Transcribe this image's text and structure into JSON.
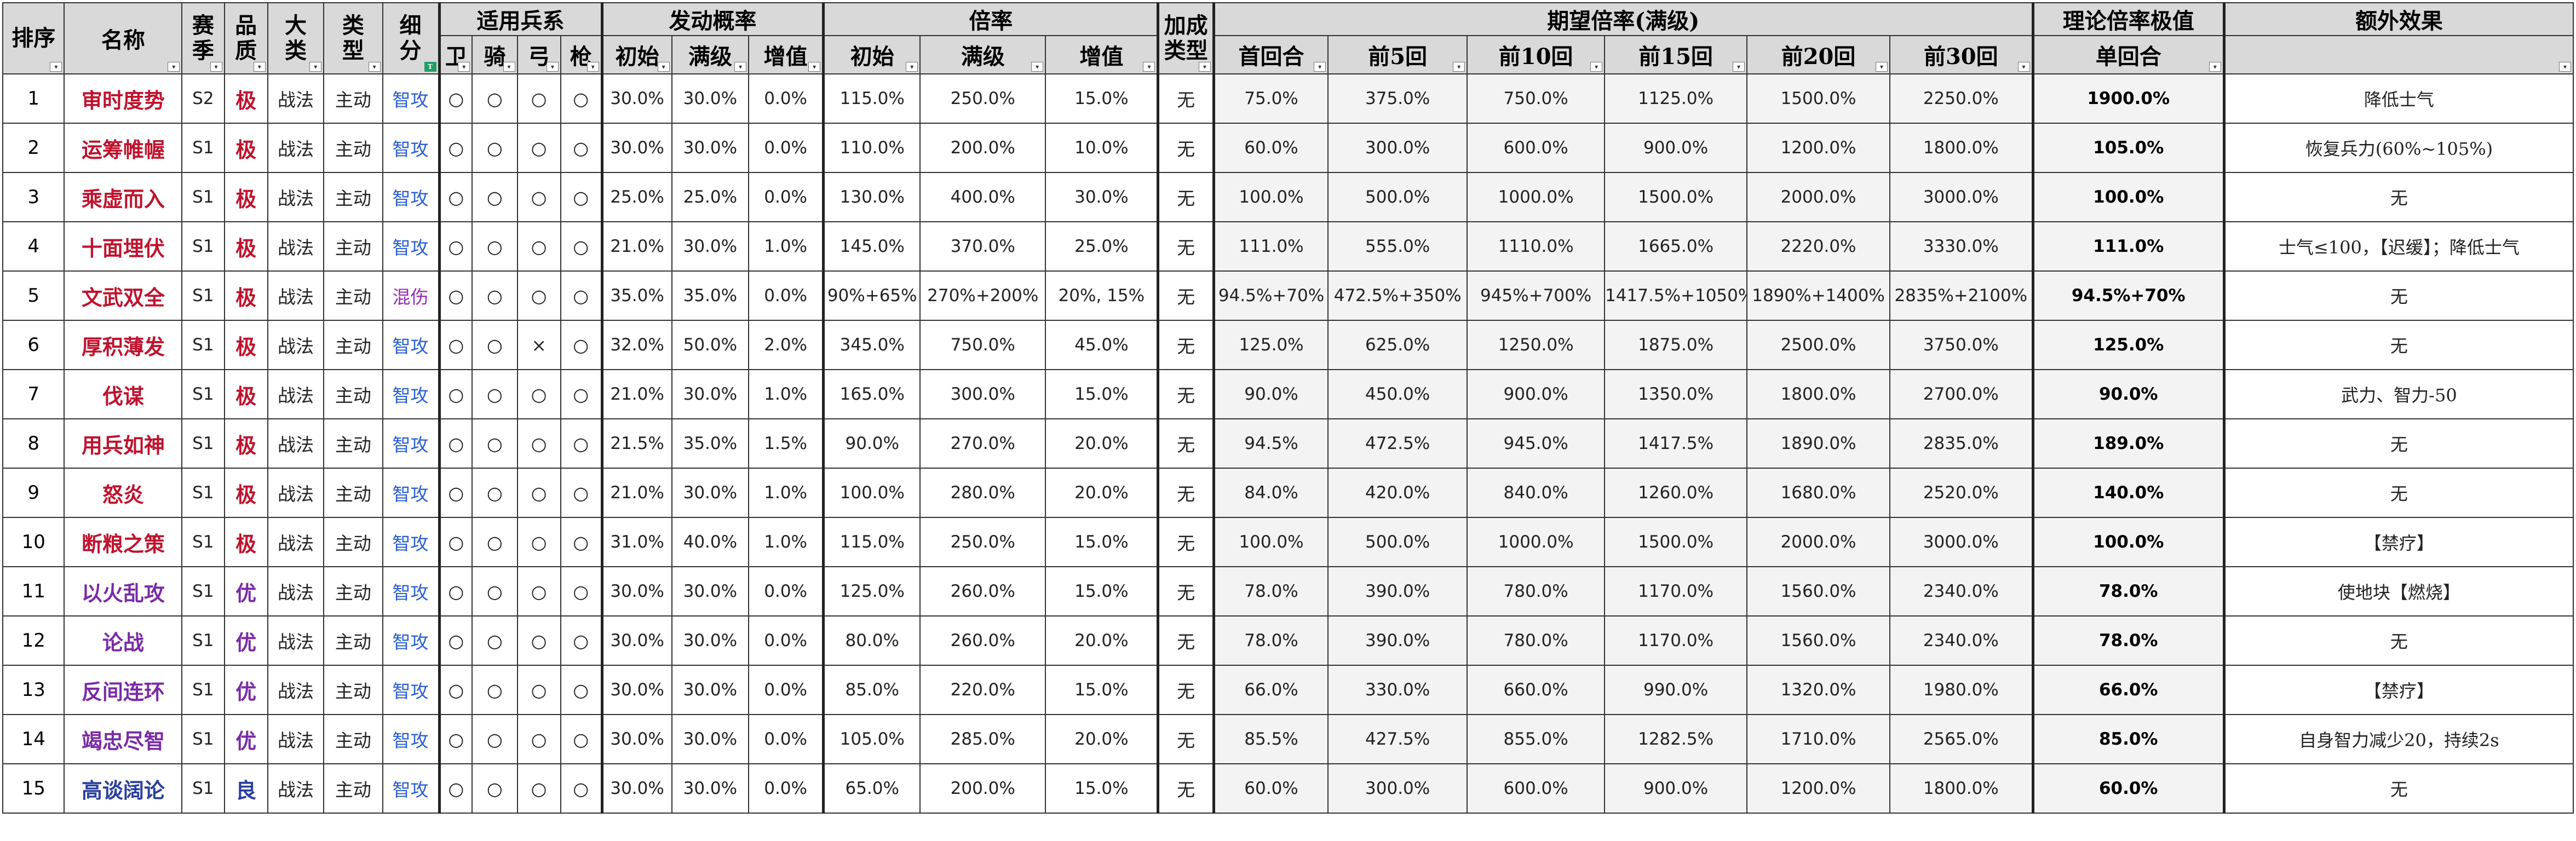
{
  "header": {
    "rank": "排序",
    "name": "名称",
    "season": "赛季",
    "quality": "品质",
    "major": "大类",
    "type": "类型",
    "subtype": "细分",
    "troops_group": "适用兵系",
    "troops": [
      "卫",
      "骑",
      "弓",
      "枪"
    ],
    "prob_group": "发动概率",
    "prob": [
      "初始",
      "满级",
      "增值"
    ],
    "rate_group": "倍率",
    "rate": [
      "初始",
      "满级",
      "增值"
    ],
    "bonus_type": "加成类型",
    "expect_group": "期望倍率(满级)",
    "expect": [
      "首回合",
      "前5回",
      "前10回",
      "前15回",
      "前20回",
      "前30回"
    ],
    "theo_group": "理论倍率极值",
    "theo": "单回合",
    "extra": "额外效果"
  },
  "colors": {
    "极": "#c0122d",
    "优": "#7a2aa6",
    "良": "#2a3f9e",
    "智攻": "#2a5fd4",
    "混伤": "#9a2ab5"
  },
  "rows": [
    {
      "rank": "1",
      "name": "审时度势",
      "season": "S2",
      "quality": "极",
      "major": "战法",
      "type": "主动",
      "sub": "智攻",
      "troops": [
        "○",
        "○",
        "○",
        "○"
      ],
      "prob": [
        "30.0%",
        "30.0%",
        "0.0%"
      ],
      "rate": [
        "115.0%",
        "250.0%",
        "15.0%"
      ],
      "bonus": "无",
      "expect": [
        "75.0%",
        "375.0%",
        "750.0%",
        "1125.0%",
        "1500.0%",
        "2250.0%"
      ],
      "theo": "1900.0%",
      "extra": "降低士气"
    },
    {
      "rank": "2",
      "name": "运筹帷幄",
      "season": "S1",
      "quality": "极",
      "major": "战法",
      "type": "主动",
      "sub": "智攻",
      "troops": [
        "○",
        "○",
        "○",
        "○"
      ],
      "prob": [
        "30.0%",
        "30.0%",
        "0.0%"
      ],
      "rate": [
        "110.0%",
        "200.0%",
        "10.0%"
      ],
      "bonus": "无",
      "expect": [
        "60.0%",
        "300.0%",
        "600.0%",
        "900.0%",
        "1200.0%",
        "1800.0%"
      ],
      "theo": "105.0%",
      "extra": "恢复兵力(60%~105%)"
    },
    {
      "rank": "3",
      "name": "乘虚而入",
      "season": "S1",
      "quality": "极",
      "major": "战法",
      "type": "主动",
      "sub": "智攻",
      "troops": [
        "○",
        "○",
        "○",
        "○"
      ],
      "prob": [
        "25.0%",
        "25.0%",
        "0.0%"
      ],
      "rate": [
        "130.0%",
        "400.0%",
        "30.0%"
      ],
      "bonus": "无",
      "expect": [
        "100.0%",
        "500.0%",
        "1000.0%",
        "1500.0%",
        "2000.0%",
        "3000.0%"
      ],
      "theo": "100.0%",
      "extra": "无"
    },
    {
      "rank": "4",
      "name": "十面埋伏",
      "season": "S1",
      "quality": "极",
      "major": "战法",
      "type": "主动",
      "sub": "智攻",
      "troops": [
        "○",
        "○",
        "○",
        "○"
      ],
      "prob": [
        "21.0%",
        "30.0%",
        "1.0%"
      ],
      "rate": [
        "145.0%",
        "370.0%",
        "25.0%"
      ],
      "bonus": "无",
      "expect": [
        "111.0%",
        "555.0%",
        "1110.0%",
        "1665.0%",
        "2220.0%",
        "3330.0%"
      ],
      "theo": "111.0%",
      "extra": "士气≤100，【迟缓】；降低士气"
    },
    {
      "rank": "5",
      "name": "文武双全",
      "season": "S1",
      "quality": "极",
      "major": "战法",
      "type": "主动",
      "sub": "混伤",
      "troops": [
        "○",
        "○",
        "○",
        "○"
      ],
      "prob": [
        "35.0%",
        "35.0%",
        "0.0%"
      ],
      "rate": [
        "90%+65%",
        "270%+200%",
        "20%, 15%"
      ],
      "bonus": "无",
      "expect": [
        "94.5%+70%",
        "472.5%+350%",
        "945%+700%",
        "1417.5%+1050%",
        "1890%+1400%",
        "2835%+2100%"
      ],
      "theo": "94.5%+70%",
      "extra": "无"
    },
    {
      "rank": "6",
      "name": "厚积薄发",
      "season": "S1",
      "quality": "极",
      "major": "战法",
      "type": "主动",
      "sub": "智攻",
      "troops": [
        "○",
        "○",
        "×",
        "○"
      ],
      "prob": [
        "32.0%",
        "50.0%",
        "2.0%"
      ],
      "rate": [
        "345.0%",
        "750.0%",
        "45.0%"
      ],
      "bonus": "无",
      "expect": [
        "125.0%",
        "625.0%",
        "1250.0%",
        "1875.0%",
        "2500.0%",
        "3750.0%"
      ],
      "theo": "125.0%",
      "extra": "无"
    },
    {
      "rank": "7",
      "name": "伐谋",
      "season": "S1",
      "quality": "极",
      "major": "战法",
      "type": "主动",
      "sub": "智攻",
      "troops": [
        "○",
        "○",
        "○",
        "○"
      ],
      "prob": [
        "21.0%",
        "30.0%",
        "1.0%"
      ],
      "rate": [
        "165.0%",
        "300.0%",
        "15.0%"
      ],
      "bonus": "无",
      "expect": [
        "90.0%",
        "450.0%",
        "900.0%",
        "1350.0%",
        "1800.0%",
        "2700.0%"
      ],
      "theo": "90.0%",
      "extra": "武力、智力-50"
    },
    {
      "rank": "8",
      "name": "用兵如神",
      "season": "S1",
      "quality": "极",
      "major": "战法",
      "type": "主动",
      "sub": "智攻",
      "troops": [
        "○",
        "○",
        "○",
        "○"
      ],
      "prob": [
        "21.5%",
        "35.0%",
        "1.5%"
      ],
      "rate": [
        "90.0%",
        "270.0%",
        "20.0%"
      ],
      "bonus": "无",
      "expect": [
        "94.5%",
        "472.5%",
        "945.0%",
        "1417.5%",
        "1890.0%",
        "2835.0%"
      ],
      "theo": "189.0%",
      "extra": "无"
    },
    {
      "rank": "9",
      "name": "怒炎",
      "season": "S1",
      "quality": "极",
      "major": "战法",
      "type": "主动",
      "sub": "智攻",
      "troops": [
        "○",
        "○",
        "○",
        "○"
      ],
      "prob": [
        "21.0%",
        "30.0%",
        "1.0%"
      ],
      "rate": [
        "100.0%",
        "280.0%",
        "20.0%"
      ],
      "bonus": "无",
      "expect": [
        "84.0%",
        "420.0%",
        "840.0%",
        "1260.0%",
        "1680.0%",
        "2520.0%"
      ],
      "theo": "140.0%",
      "extra": "无"
    },
    {
      "rank": "10",
      "name": "断粮之策",
      "season": "S1",
      "quality": "极",
      "major": "战法",
      "type": "主动",
      "sub": "智攻",
      "troops": [
        "○",
        "○",
        "○",
        "○"
      ],
      "prob": [
        "31.0%",
        "40.0%",
        "1.0%"
      ],
      "rate": [
        "115.0%",
        "250.0%",
        "15.0%"
      ],
      "bonus": "无",
      "expect": [
        "100.0%",
        "500.0%",
        "1000.0%",
        "1500.0%",
        "2000.0%",
        "3000.0%"
      ],
      "theo": "100.0%",
      "extra": "【禁疗】"
    },
    {
      "rank": "11",
      "name": "以火乱攻",
      "season": "S1",
      "quality": "优",
      "major": "战法",
      "type": "主动",
      "sub": "智攻",
      "troops": [
        "○",
        "○",
        "○",
        "○"
      ],
      "prob": [
        "30.0%",
        "30.0%",
        "0.0%"
      ],
      "rate": [
        "125.0%",
        "260.0%",
        "15.0%"
      ],
      "bonus": "无",
      "expect": [
        "78.0%",
        "390.0%",
        "780.0%",
        "1170.0%",
        "1560.0%",
        "2340.0%"
      ],
      "theo": "78.0%",
      "extra": "使地块【燃烧】"
    },
    {
      "rank": "12",
      "name": "论战",
      "season": "S1",
      "quality": "优",
      "major": "战法",
      "type": "主动",
      "sub": "智攻",
      "troops": [
        "○",
        "○",
        "○",
        "○"
      ],
      "prob": [
        "30.0%",
        "30.0%",
        "0.0%"
      ],
      "rate": [
        "80.0%",
        "260.0%",
        "20.0%"
      ],
      "bonus": "无",
      "expect": [
        "78.0%",
        "390.0%",
        "780.0%",
        "1170.0%",
        "1560.0%",
        "2340.0%"
      ],
      "theo": "78.0%",
      "extra": "无"
    },
    {
      "rank": "13",
      "name": "反间连环",
      "season": "S1",
      "quality": "优",
      "major": "战法",
      "type": "主动",
      "sub": "智攻",
      "troops": [
        "○",
        "○",
        "○",
        "○"
      ],
      "prob": [
        "30.0%",
        "30.0%",
        "0.0%"
      ],
      "rate": [
        "85.0%",
        "220.0%",
        "15.0%"
      ],
      "bonus": "无",
      "expect": [
        "66.0%",
        "330.0%",
        "660.0%",
        "990.0%",
        "1320.0%",
        "1980.0%"
      ],
      "theo": "66.0%",
      "extra": "【禁疗】"
    },
    {
      "rank": "14",
      "name": "竭忠尽智",
      "season": "S1",
      "quality": "优",
      "major": "战法",
      "type": "主动",
      "sub": "智攻",
      "troops": [
        "○",
        "○",
        "○",
        "○"
      ],
      "prob": [
        "30.0%",
        "30.0%",
        "0.0%"
      ],
      "rate": [
        "105.0%",
        "285.0%",
        "20.0%"
      ],
      "bonus": "无",
      "expect": [
        "85.5%",
        "427.5%",
        "855.0%",
        "1282.5%",
        "1710.0%",
        "2565.0%"
      ],
      "theo": "85.0%",
      "extra": "自身智力减少20，持续2s"
    },
    {
      "rank": "15",
      "name": "高谈阔论",
      "season": "S1",
      "quality": "良",
      "major": "战法",
      "type": "主动",
      "sub": "智攻",
      "troops": [
        "○",
        "○",
        "○",
        "○"
      ],
      "prob": [
        "30.0%",
        "30.0%",
        "0.0%"
      ],
      "rate": [
        "65.0%",
        "200.0%",
        "15.0%"
      ],
      "bonus": "无",
      "expect": [
        "60.0%",
        "300.0%",
        "600.0%",
        "900.0%",
        "1200.0%",
        "1800.0%"
      ],
      "theo": "60.0%",
      "extra": "无"
    }
  ]
}
